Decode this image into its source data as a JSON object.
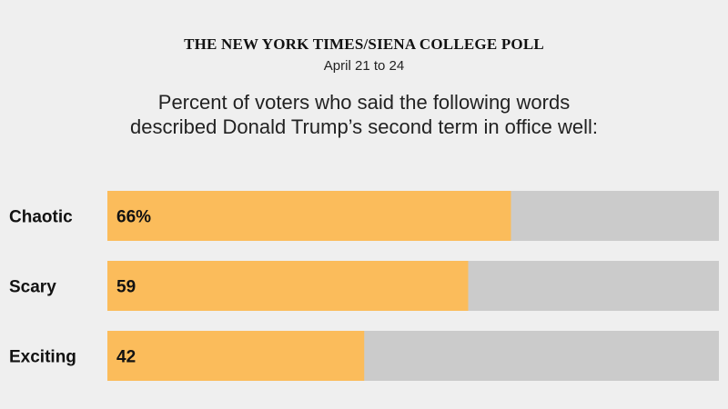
{
  "header": {
    "poll_name": "THE NEW YORK TIMES/SIENA COLLEGE POLL",
    "dates": "April 21 to 24"
  },
  "chart_data": {
    "type": "bar",
    "orientation": "horizontal",
    "title": "Percent of voters who said the following words described Donald Trump’s second term in office well:",
    "categories": [
      "Chaotic",
      "Scary",
      "Exciting"
    ],
    "values": [
      66,
      59,
      42
    ],
    "value_labels": [
      "66%",
      "59",
      "42"
    ],
    "xlim": [
      0,
      100
    ],
    "colors": {
      "bar": "#fbbc5b",
      "track": "#cbcbcb"
    }
  }
}
